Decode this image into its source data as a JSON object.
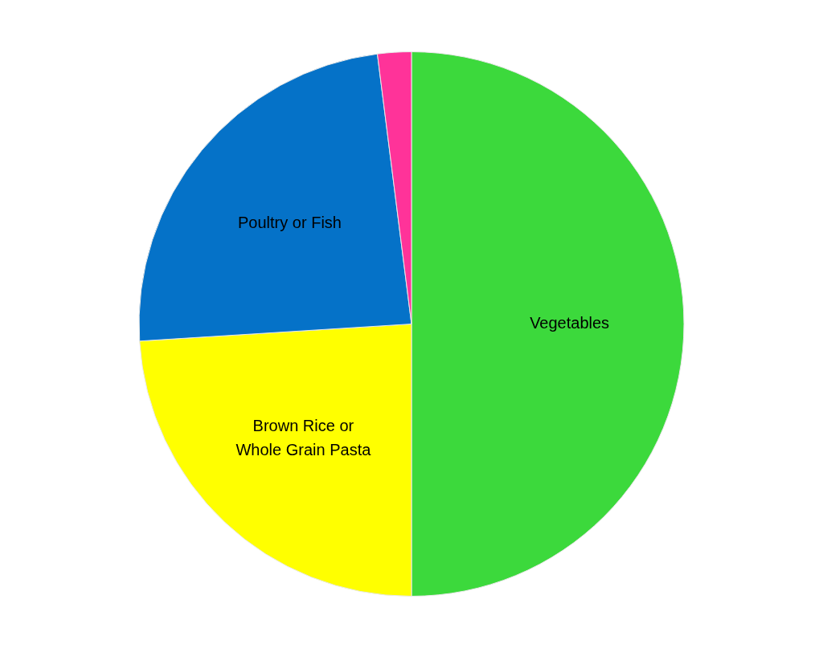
{
  "chart_data": {
    "type": "pie",
    "categories": [
      "Vegetables",
      "Brown Rice or Whole Grain Pasta",
      "Poultry or Fish",
      null
    ],
    "values": [
      50,
      24,
      24,
      2
    ],
    "colors": [
      "#3cd93c",
      "#ffff00",
      "#0572c8",
      "#ff3399"
    ],
    "legend": false
  }
}
